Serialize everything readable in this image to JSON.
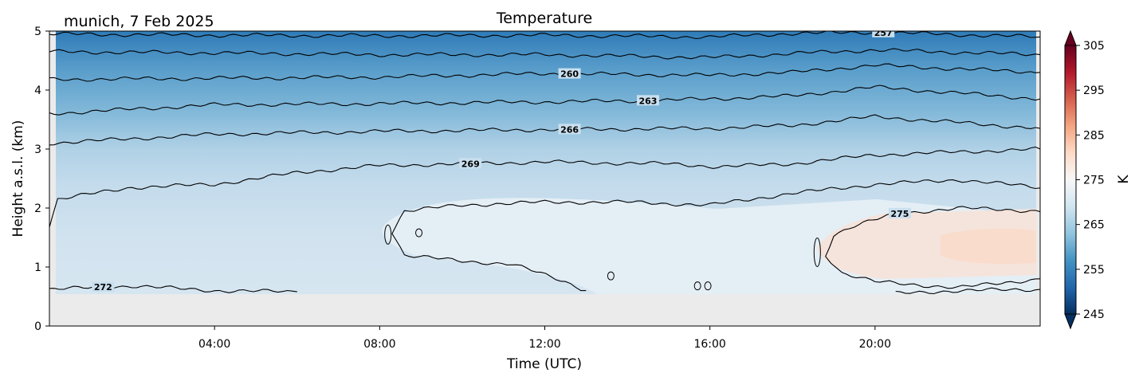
{
  "chart_data": {
    "type": "contour",
    "title": "Temperature",
    "subtitle": "munich, 7 Feb 2025",
    "xlabel": "Time (UTC)",
    "ylabel": "Height a.s.l. (km)",
    "xlim": [
      0,
      24
    ],
    "ylim": [
      0,
      5
    ],
    "x_ticks": [
      {
        "value": 4,
        "label": "04:00"
      },
      {
        "value": 8,
        "label": "08:00"
      },
      {
        "value": 12,
        "label": "12:00"
      },
      {
        "value": 16,
        "label": "16:00"
      },
      {
        "value": 20,
        "label": "20:00"
      }
    ],
    "y_ticks": [
      {
        "value": 0,
        "label": "0"
      },
      {
        "value": 1,
        "label": "1"
      },
      {
        "value": 2,
        "label": "2"
      },
      {
        "value": 3,
        "label": "3"
      },
      {
        "value": 4,
        "label": "4"
      },
      {
        "value": 5,
        "label": "5"
      }
    ],
    "ground_height_km": 0.55,
    "colorbar": {
      "label": "K",
      "range": [
        245,
        305
      ],
      "ticks": [
        {
          "value": 245,
          "label": "245"
        },
        {
          "value": 255,
          "label": "255"
        },
        {
          "value": 265,
          "label": "265"
        },
        {
          "value": 275,
          "label": "275"
        },
        {
          "value": 285,
          "label": "285"
        },
        {
          "value": 295,
          "label": "295"
        },
        {
          "value": 305,
          "label": "305"
        }
      ],
      "colormap": "RdBu_r"
    },
    "contour_levels": [
      {
        "level": 257,
        "label": "257",
        "label_x": 20.2,
        "points": [
          [
            0,
            4.95
          ],
          [
            4,
            4.93
          ],
          [
            8,
            4.92
          ],
          [
            12,
            4.93
          ],
          [
            16,
            4.9
          ],
          [
            18,
            4.96
          ],
          [
            20,
            4.98
          ],
          [
            24,
            4.9
          ]
        ]
      },
      {
        "level": null,
        "label": "",
        "label_x": null,
        "points": [
          [
            0,
            4.65
          ],
          [
            4,
            4.63
          ],
          [
            8,
            4.6
          ],
          [
            12,
            4.6
          ],
          [
            16,
            4.55
          ],
          [
            18,
            4.62
          ],
          [
            20,
            4.68
          ],
          [
            24,
            4.6
          ]
        ]
      },
      {
        "level": 260,
        "label": "260",
        "label_x": 12.6,
        "points": [
          [
            0,
            4.18
          ],
          [
            4,
            4.2
          ],
          [
            8,
            4.22
          ],
          [
            12,
            4.28
          ],
          [
            16,
            4.25
          ],
          [
            18,
            4.3
          ],
          [
            20,
            4.42
          ],
          [
            24,
            4.3
          ]
        ]
      },
      {
        "level": 263,
        "label": "263",
        "label_x": 14.5,
        "points": [
          [
            0,
            3.6
          ],
          [
            4,
            3.75
          ],
          [
            8,
            3.77
          ],
          [
            12,
            3.8
          ],
          [
            14.5,
            3.82
          ],
          [
            16,
            3.85
          ],
          [
            18,
            3.9
          ],
          [
            20,
            4.05
          ],
          [
            24,
            3.85
          ]
        ]
      },
      {
        "level": 266,
        "label": "266",
        "label_x": 12.6,
        "points": [
          [
            0,
            3.1
          ],
          [
            4,
            3.25
          ],
          [
            8,
            3.3
          ],
          [
            12,
            3.33
          ],
          [
            16,
            3.35
          ],
          [
            18,
            3.4
          ],
          [
            20,
            3.55
          ],
          [
            24,
            3.35
          ]
        ]
      },
      {
        "level": 269,
        "label": "269",
        "label_x": 10.2,
        "points": [
          [
            0,
            1.7
          ],
          [
            0.2,
            2.15
          ],
          [
            2,
            2.35
          ],
          [
            4,
            2.4
          ],
          [
            6,
            2.6
          ],
          [
            8,
            2.72
          ],
          [
            10,
            2.75
          ],
          [
            12,
            2.78
          ],
          [
            15,
            2.75
          ],
          [
            16.2,
            2.7
          ],
          [
            18,
            2.75
          ],
          [
            20,
            2.9
          ],
          [
            24,
            3.0
          ]
        ]
      },
      {
        "level": 272,
        "label": "272",
        "label_x": 1.3,
        "points": [
          [
            0,
            0.62
          ],
          [
            2,
            0.68
          ],
          [
            4,
            0.6
          ],
          [
            6,
            0.58
          ]
        ]
      },
      {
        "level": 272,
        "label": "",
        "label_x": null,
        "points": [
          [
            24,
            2.35
          ],
          [
            22,
            2.48
          ],
          [
            20,
            2.4
          ],
          [
            18,
            2.25
          ],
          [
            16,
            2.05
          ],
          [
            14,
            2.1
          ],
          [
            12,
            2.1
          ],
          [
            10,
            2.05
          ],
          [
            8.6,
            1.95
          ],
          [
            8.3,
            1.6
          ],
          [
            8.6,
            1.2
          ],
          [
            10,
            1.1
          ],
          [
            11.2,
            1.05
          ],
          [
            12.5,
            0.75
          ],
          [
            13,
            0.6
          ]
        ]
      },
      {
        "level": 272,
        "label": "",
        "label_x": null,
        "points": [
          [
            20.5,
            0.55
          ],
          [
            22,
            0.6
          ],
          [
            24,
            0.62
          ]
        ]
      },
      {
        "level": 275,
        "label": "275",
        "label_x": 20.6,
        "points": [
          [
            24,
            1.95
          ],
          [
            22,
            2.0
          ],
          [
            20.5,
            1.9
          ],
          [
            19.5,
            1.7
          ],
          [
            19,
            1.55
          ],
          [
            18.8,
            1.2
          ],
          [
            19.2,
            0.9
          ],
          [
            20,
            0.75
          ],
          [
            22,
            0.65
          ],
          [
            24,
            0.8
          ]
        ]
      }
    ]
  }
}
